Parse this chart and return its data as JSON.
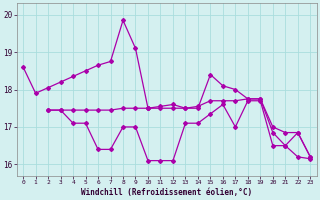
{
  "xlabel": "Windchill (Refroidissement éolien,°C)",
  "bg_color": "#d4f0f0",
  "grid_color": "#aadddd",
  "line_color": "#aa00aa",
  "xlim": [
    -0.5,
    23.5
  ],
  "ylim": [
    15.7,
    20.3
  ],
  "yticks": [
    16,
    17,
    18,
    19,
    20
  ],
  "xticks": [
    0,
    1,
    2,
    3,
    4,
    5,
    6,
    7,
    8,
    9,
    10,
    11,
    12,
    13,
    14,
    15,
    16,
    17,
    18,
    19,
    20,
    21,
    22,
    23
  ],
  "lines": [
    {
      "x": [
        0,
        1,
        2,
        3,
        4,
        5,
        6,
        7,
        8,
        9,
        10
      ],
      "y": [
        18.6,
        17.9,
        18.05,
        18.2,
        18.35,
        18.5,
        18.65,
        18.75,
        19.85,
        19.1,
        17.5
      ]
    },
    {
      "x": [
        2,
        3,
        4,
        5,
        6,
        7,
        8,
        9,
        10,
        11,
        12,
        13,
        14,
        15,
        16,
        17,
        18,
        19,
        20,
        21,
        22,
        23
      ],
      "y": [
        17.45,
        17.45,
        17.1,
        17.1,
        16.4,
        16.4,
        17.0,
        17.0,
        16.1,
        16.1,
        16.1,
        17.1,
        17.1,
        17.35,
        17.6,
        17.0,
        17.7,
        17.7,
        16.5,
        16.5,
        16.2,
        16.15
      ]
    },
    {
      "x": [
        2,
        3,
        4,
        5,
        6,
        7,
        8,
        9,
        10,
        11,
        12,
        13,
        14,
        15,
        16,
        17,
        18,
        19,
        20,
        21,
        22,
        23
      ],
      "y": [
        17.45,
        17.45,
        17.45,
        17.45,
        17.45,
        17.45,
        17.5,
        17.5,
        17.5,
        17.5,
        17.5,
        17.5,
        17.55,
        17.7,
        17.7,
        17.7,
        17.75,
        17.75,
        17.0,
        16.85,
        16.85,
        16.2
      ]
    },
    {
      "x": [
        10,
        11,
        12,
        13,
        14,
        15,
        16,
        17,
        18,
        19,
        20,
        21,
        22,
        23
      ],
      "y": [
        17.5,
        17.55,
        17.6,
        17.5,
        17.5,
        18.4,
        18.1,
        18.0,
        17.75,
        17.75,
        16.85,
        16.5,
        16.85,
        16.2
      ]
    }
  ]
}
